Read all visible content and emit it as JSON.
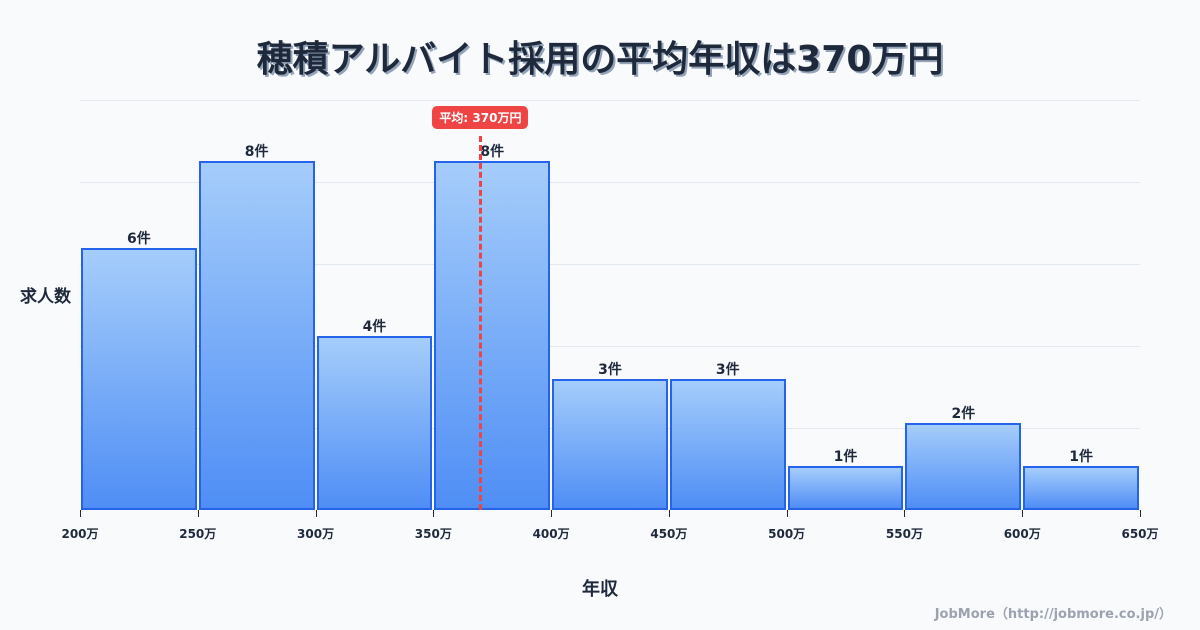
{
  "title": "穂積アルバイト採用の平均年収は370万円",
  "ylabel": "求人数",
  "xlabel": "年収",
  "credit": "JobMore（http://jobmore.co.jp/）",
  "mean_badge": "平均: 370万円",
  "colors": {
    "bar_border": "#2563eb",
    "bar_top": "#a5cdfb",
    "bar_bottom": "#4f8ef5",
    "mean": "#ef4444",
    "text": "#1e293b",
    "grid": "#e2e8f0"
  },
  "chart_data": {
    "type": "bar",
    "title": "穂積アルバイト採用の平均年収は370万円",
    "xlabel": "年収",
    "ylabel": "求人数",
    "categories": [
      "200-250万",
      "250-300万",
      "300-350万",
      "350-400万",
      "400-450万",
      "450-500万",
      "500-550万",
      "550-600万",
      "600-650万"
    ],
    "values": [
      6,
      8,
      4,
      8,
      3,
      3,
      1,
      2,
      1
    ],
    "value_labels": [
      "6件",
      "8件",
      "4件",
      "8件",
      "3件",
      "3件",
      "1件",
      "2件",
      "1件"
    ],
    "x_ticks": [
      "200万",
      "250万",
      "300万",
      "350万",
      "400万",
      "450万",
      "500万",
      "550万",
      "600万",
      "650万"
    ],
    "mean": 370,
    "mean_label": "平均: 370万円",
    "grid": true,
    "ylim": [
      0,
      9.4
    ]
  }
}
